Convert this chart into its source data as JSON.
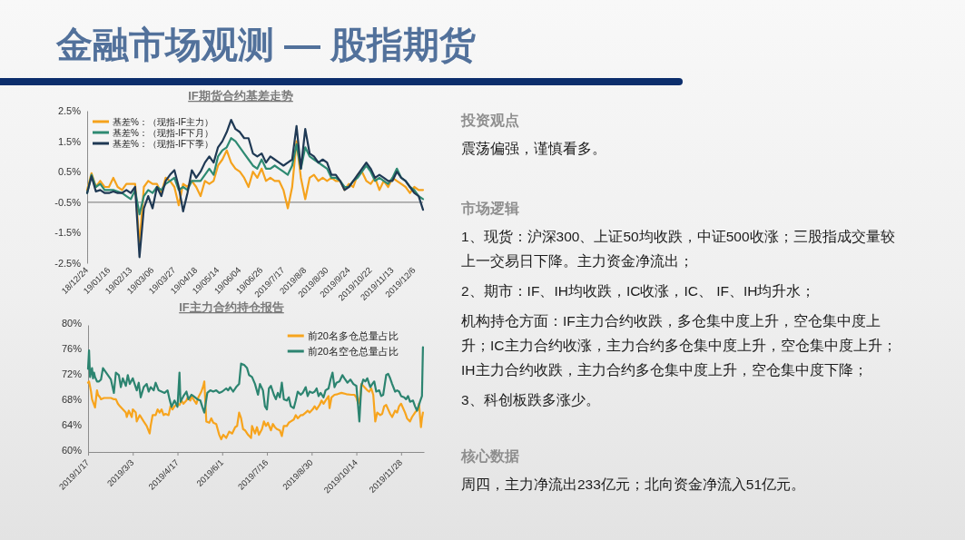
{
  "chart_data": [
    {
      "type": "other",
      "title": "金融市场观测 — 股指期货"
    },
    {
      "type": "line",
      "title": "IF期货合约基差走势",
      "categories": [
        "18/12/24",
        null,
        null,
        null,
        null,
        "19/01/16",
        null,
        null,
        null,
        null,
        "19/02/13",
        null,
        null,
        null,
        null,
        "19/03/06",
        null,
        null,
        null,
        null,
        "19/03/27",
        null,
        null,
        null,
        null,
        "19/04/18",
        null,
        null,
        null,
        null,
        "19/05/14",
        null,
        null,
        null,
        null,
        "19/06/04",
        null,
        null,
        null,
        null,
        "19/06/26",
        null,
        null,
        null,
        null,
        "2019/7/17",
        null,
        null,
        null,
        null,
        "2019/8/8",
        null,
        null,
        null,
        null,
        "2019/8/30",
        null,
        null,
        null,
        null,
        "2019/9/24",
        null,
        null,
        null,
        null,
        "2019/10/22",
        null,
        null,
        null,
        null,
        "2019/11/13",
        null,
        null,
        null,
        null,
        "2019/12/6",
        null,
        null
      ],
      "series": [
        {
          "name": "基差%：（现指-IF主力）",
          "color": "#f5a21c",
          "values": [
            -0.1,
            0.45,
            0.0,
            0.2,
            0.0,
            0.0,
            0.3,
            0.0,
            -0.1,
            0.1,
            0.1,
            0.1,
            -1.9,
            0.0,
            0.2,
            0.1,
            0.1,
            -0.2,
            0.3,
            0.2,
            0.0,
            -0.6,
            0.1,
            0.0,
            0.2,
            0.0,
            -0.3,
            0.2,
            0.1,
            0.2,
            0.7,
            0.9,
            1.2,
            0.8,
            0.6,
            0.5,
            0.3,
            0.0,
            0.5,
            0.3,
            0.6,
            0.2,
            0.3,
            0.2,
            0.2,
            -0.1,
            -0.7,
            0.0,
            1.5,
            0.3,
            -0.4,
            0.3,
            0.4,
            0.2,
            0.3,
            0.2,
            0.3,
            0.2,
            0.2,
            -0.1,
            0.1,
            0.0,
            0.4,
            0.5,
            0.2,
            0.1,
            0.3,
            -0.1,
            0.2,
            0.0,
            0.3,
            0.2,
            0.1,
            0.0,
            -0.2,
            0.0,
            -0.1,
            -0.1
          ]
        },
        {
          "name": "基差%：（现指-IF下月）",
          "color": "#2e8a72",
          "values": [
            -0.2,
            0.4,
            0.0,
            0.1,
            -0.1,
            -0.1,
            -0.1,
            -0.15,
            -0.2,
            -0.3,
            -0.4,
            -0.1,
            -0.9,
            -0.3,
            -0.1,
            -0.2,
            0.0,
            -0.1,
            0.1,
            0.2,
            0.3,
            -0.1,
            0.0,
            -0.1,
            0.2,
            0.2,
            0.2,
            0.4,
            0.6,
            0.4,
            1.0,
            1.2,
            1.3,
            1.6,
            1.5,
            1.3,
            1.1,
            0.9,
            0.7,
            0.6,
            0.9,
            0.6,
            0.6,
            0.7,
            0.6,
            0.5,
            0.4,
            0.7,
            1.4,
            0.6,
            1.3,
            1.0,
            0.9,
            0.8,
            0.7,
            0.6,
            0.3,
            0.3,
            0.2,
            0.0,
            0.0,
            0.2,
            0.3,
            0.5,
            0.7,
            0.5,
            0.2,
            0.3,
            0.2,
            0.1,
            0.3,
            0.6,
            0.3,
            0.2,
            0.0,
            -0.1,
            -0.3,
            -0.4
          ]
        },
        {
          "name": "基差%：（现指-IF下季）",
          "color": "#1f3954",
          "values": [
            -0.2,
            0.35,
            -0.15,
            -0.1,
            -0.2,
            -0.2,
            -0.15,
            -0.2,
            -0.2,
            -0.1,
            -0.2,
            0.0,
            -2.3,
            -0.7,
            -0.3,
            -0.7,
            0.0,
            -0.3,
            0.2,
            0.4,
            0.55,
            0.0,
            -0.8,
            -0.2,
            0.55,
            0.3,
            0.5,
            0.8,
            1.0,
            0.8,
            1.3,
            1.5,
            1.8,
            2.2,
            1.9,
            1.8,
            1.6,
            1.6,
            1.1,
            1.0,
            1.1,
            0.8,
            1.0,
            0.9,
            0.8,
            0.7,
            0.8,
            0.9,
            2.0,
            0.6,
            1.9,
            1.1,
            1.0,
            0.8,
            0.9,
            0.8,
            0.4,
            0.4,
            0.2,
            -0.1,
            0.0,
            0.2,
            0.4,
            0.6,
            0.8,
            0.6,
            0.3,
            0.4,
            0.3,
            0.2,
            0.2,
            0.5,
            0.3,
            0.2,
            0.0,
            -0.2,
            -0.3,
            -0.75
          ]
        }
      ],
      "ylim": [
        -2.5,
        2.5
      ],
      "yticks": [
        {
          "value": -2.5,
          "label": "-2.5%"
        },
        {
          "value": -1.5,
          "label": "-1.5%"
        },
        {
          "value": -0.5,
          "label": "-0.5%"
        },
        {
          "value": 0.5,
          "label": "0.5%"
        },
        {
          "value": 1.5,
          "label": "1.5%"
        },
        {
          "value": 2.5,
          "label": "2.5%"
        }
      ],
      "ref_lines": [
        {
          "axis": "y",
          "value": -0.5
        }
      ],
      "legend": "top left"
    },
    {
      "type": "line",
      "title": "IF主力合约持仓报告",
      "series": [
        {
          "name": "前20名多仓总量占比",
          "color": "#f7a41d",
          "x": [
            "2019-01-17",
            "2019-01-18",
            "2019-01-20",
            "2019-01-21",
            "2019-01-24",
            "2019-01-26",
            "2019-01-27",
            "2019-01-29",
            "2019-01-30",
            "2019-02-02",
            "2019-02-06",
            "2019-02-09",
            "2019-02-12",
            "2019-02-14",
            "2019-02-16",
            "2019-02-18",
            "2019-02-21",
            "2019-02-24",
            "2019-02-25",
            "2019-02-27",
            "2019-03-02",
            "2019-03-03",
            "2019-03-06",
            "2019-03-07",
            "2019-03-10",
            "2019-03-12",
            "2019-03-14",
            "2019-03-17",
            "2019-03-20",
            "2019-03-21",
            "2019-03-23",
            "2019-03-26",
            "2019-03-28",
            "2019-03-30",
            "2019-04-01",
            "2019-04-03",
            "2019-04-05",
            "2019-04-08",
            "2019-04-10",
            "2019-04-12",
            "2019-04-14",
            "2019-04-17",
            "2019-04-19",
            "2019-04-21",
            "2019-04-23",
            "2019-04-26",
            "2019-04-27",
            "2019-04-30",
            "2019-05-01",
            "2019-05-03",
            "2019-05-06",
            "2019-05-08",
            "2019-05-11",
            "2019-05-13",
            "2019-05-14",
            "2019-05-16",
            "2019-05-19",
            "2019-05-21",
            "2019-05-23",
            "2019-05-26",
            "2019-05-29",
            "2019-05-31",
            "2019-06-02",
            "2019-06-05",
            "2019-06-08",
            "2019-06-11",
            "2019-06-14",
            "2019-06-16",
            "2019-06-18",
            "2019-06-20",
            "2019-06-22",
            "2019-06-24",
            "2019-06-27",
            "2019-06-30",
            "2019-07-01",
            "2019-07-04",
            "2019-07-06",
            "2019-07-08",
            "2019-07-11",
            "2019-07-13",
            "2019-07-15",
            "2019-07-17",
            "2019-07-20",
            "2019-07-22",
            "2019-07-24",
            "2019-07-26",
            "2019-07-29",
            "2019-07-31",
            "2019-08-02",
            "2019-08-05",
            "2019-08-07",
            "2019-08-09",
            "2019-08-12",
            "2019-08-14",
            "2019-08-16",
            "2019-08-19",
            "2019-08-21",
            "2019-08-24",
            "2019-08-26",
            "2019-08-28",
            "2019-08-31",
            "2019-09-02",
            "2019-09-04",
            "2019-09-07",
            "2019-09-09",
            "2019-09-11",
            "2019-09-13",
            "2019-09-16",
            "2019-09-17",
            "2019-09-19",
            "2019-09-22",
            "2019-09-25",
            "2019-09-29",
            "2019-10-04",
            "2019-10-09",
            "2019-10-12",
            "2019-10-14",
            "2019-10-16",
            "2019-10-18",
            "2019-10-19",
            "2019-10-22",
            "2019-10-25",
            "2019-10-27",
            "2019-10-29",
            "2019-10-31",
            "2019-11-02",
            "2019-11-04",
            "2019-11-07",
            "2019-11-09",
            "2019-11-11",
            "2019-11-13",
            "2019-11-15",
            "2019-11-17",
            "2019-11-19",
            "2019-11-22",
            "2019-11-24",
            "2019-11-26",
            "2019-11-28",
            "2019-11-30",
            "2019-12-02",
            "2019-12-04",
            "2019-12-07",
            "2019-12-09",
            "2019-12-12",
            "2019-12-15",
            "2019-12-16",
            "2019-12-18",
            "2019-12-19",
            "2019-12-20"
          ],
          "values": [
            70.9,
            71.1,
            69.5,
            68.3,
            67.0,
            69.7,
            69.0,
            68.6,
            68.3,
            68.5,
            68.5,
            68.5,
            68.3,
            68.3,
            67.6,
            67.2,
            66.7,
            66.2,
            65.5,
            66.5,
            65.5,
            66.7,
            66.2,
            64.8,
            65.8,
            65.3,
            64.8,
            64.1,
            62.9,
            64.1,
            65.8,
            65.8,
            66.7,
            66.2,
            66.7,
            65.8,
            66.0,
            65.8,
            67.2,
            66.7,
            67.2,
            67.6,
            67.4,
            68.1,
            67.6,
            68.1,
            68.5,
            68.1,
            68.8,
            68.3,
            67.6,
            68.6,
            69.5,
            70.4,
            71.1,
            64.8,
            64.6,
            65.3,
            64.6,
            64.4,
            62.7,
            62.0,
            62.7,
            62.2,
            63.2,
            62.9,
            63.9,
            64.1,
            66.2,
            65.3,
            63.6,
            63.4,
            62.7,
            62.2,
            64.1,
            62.9,
            63.9,
            62.7,
            63.6,
            64.8,
            64.1,
            64.6,
            63.4,
            64.4,
            63.9,
            63.6,
            63.4,
            62.5,
            64.1,
            64.1,
            64.6,
            64.8,
            65.1,
            65.8,
            65.3,
            65.8,
            65.8,
            66.2,
            66.5,
            66.2,
            66.7,
            67.2,
            66.7,
            67.4,
            68.1,
            67.6,
            68.1,
            68.8,
            66.9,
            68.6,
            69.0,
            69.1,
            69.3,
            69.1,
            69.0,
            69.0,
            68.6,
            67.6,
            68.8,
            70.7,
            70.2,
            69.7,
            69.5,
            70.0,
            69.0,
            64.8,
            66.2,
            65.8,
            66.0,
            67.2,
            67.4,
            66.7,
            66.0,
            65.5,
            66.5,
            66.2,
            67.2,
            67.6,
            66.9,
            66.2,
            65.3,
            64.8,
            65.5,
            66.2,
            66.7,
            67.6,
            63.9,
            65.3,
            66.2
          ]
        },
        {
          "name": "前20名空仓总量占比",
          "color": "#2c8470",
          "x": [
            "2019-01-17",
            "2019-01-18",
            "2019-01-19",
            "2019-01-21",
            "2019-01-22",
            "2019-01-23",
            "2019-01-24",
            "2019-01-26",
            "2019-01-28",
            "2019-01-30",
            "2019-02-01",
            "2019-02-06",
            "2019-02-09",
            "2019-02-12",
            "2019-02-14",
            "2019-02-17",
            "2019-02-19",
            "2019-02-21",
            "2019-02-24",
            "2019-02-26",
            "2019-02-28",
            "2019-03-03",
            "2019-03-07",
            "2019-03-09",
            "2019-03-11",
            "2019-03-14",
            "2019-03-17",
            "2019-03-19",
            "2019-03-21",
            "2019-03-24",
            "2019-03-26",
            "2019-03-29",
            "2019-04-01",
            "2019-04-04",
            "2019-04-07",
            "2019-04-09",
            "2019-04-11",
            "2019-04-14",
            "2019-04-17",
            "2019-04-19",
            "2019-04-20",
            "2019-04-23",
            "2019-04-26",
            "2019-04-28",
            "2019-05-01",
            "2019-05-03",
            "2019-05-07",
            "2019-05-10",
            "2019-05-12",
            "2019-05-14",
            "2019-05-17",
            "2019-05-20",
            "2019-05-23",
            "2019-05-26",
            "2019-05-29",
            "2019-06-01",
            "2019-06-05",
            "2019-06-07",
            "2019-06-09",
            "2019-06-12",
            "2019-06-15",
            "2019-06-18",
            "2019-06-20",
            "2019-06-23",
            "2019-06-26",
            "2019-06-28",
            "2019-07-01",
            "2019-07-04",
            "2019-07-07",
            "2019-07-09",
            "2019-07-12",
            "2019-07-14",
            "2019-07-16",
            "2019-07-18",
            "2019-07-20",
            "2019-07-23",
            "2019-07-25",
            "2019-07-27",
            "2019-07-29",
            "2019-07-31",
            "2019-08-02",
            "2019-08-05",
            "2019-08-07",
            "2019-08-09",
            "2019-08-12",
            "2019-08-14",
            "2019-08-16",
            "2019-08-19",
            "2019-08-21",
            "2019-08-24",
            "2019-08-26",
            "2019-08-28",
            "2019-08-31",
            "2019-09-02",
            "2019-09-04",
            "2019-09-06",
            "2019-09-08",
            "2019-09-11",
            "2019-09-13",
            "2019-09-16",
            "2019-09-18",
            "2019-09-20",
            "2019-09-22",
            "2019-09-24",
            "2019-09-27",
            "2019-09-30",
            "2019-10-02",
            "2019-10-05",
            "2019-10-08",
            "2019-10-11",
            "2019-10-14",
            "2019-10-16",
            "2019-10-17",
            "2019-10-19",
            "2019-10-21",
            "2019-10-23",
            "2019-10-25",
            "2019-10-28",
            "2019-10-30",
            "2019-11-01",
            "2019-11-03",
            "2019-11-06",
            "2019-11-08",
            "2019-11-10",
            "2019-11-13",
            "2019-11-15",
            "2019-11-17",
            "2019-11-19",
            "2019-11-22",
            "2019-11-24",
            "2019-11-26",
            "2019-11-28",
            "2019-12-01",
            "2019-12-03",
            "2019-12-05",
            "2019-12-07",
            "2019-12-10",
            "2019-12-12",
            "2019-12-14",
            "2019-12-16",
            "2019-12-17",
            "2019-12-19",
            "2019-12-20"
          ],
          "values": [
            73.1,
            76.0,
            71.8,
            73.2,
            71.6,
            72.5,
            71.8,
            71.1,
            71.1,
            71.4,
            73.2,
            72.1,
            71.4,
            69.3,
            72.5,
            72.1,
            70.2,
            71.6,
            70.4,
            72.1,
            70.7,
            71.6,
            69.7,
            70.9,
            68.6,
            70.2,
            70.7,
            69.5,
            70.2,
            69.7,
            70.9,
            69.7,
            69.5,
            69.3,
            69.7,
            68.3,
            67.1,
            68.1,
            67.1,
            72.5,
            67.9,
            68.8,
            69.5,
            68.3,
            69.0,
            68.8,
            68.3,
            68.1,
            67.1,
            66.2,
            69.3,
            69.7,
            69.5,
            69.7,
            69.3,
            69.5,
            70.0,
            69.7,
            70.2,
            69.5,
            70.2,
            70.7,
            73.9,
            73.7,
            73.2,
            72.1,
            71.8,
            70.7,
            69.0,
            70.7,
            69.7,
            67.2,
            66.7,
            70.0,
            70.4,
            69.0,
            68.3,
            69.3,
            68.6,
            70.9,
            68.3,
            68.1,
            68.6,
            67.2,
            66.9,
            68.1,
            69.5,
            69.0,
            69.3,
            70.2,
            68.8,
            69.5,
            69.3,
            69.5,
            70.0,
            68.8,
            69.3,
            68.6,
            69.7,
            70.0,
            71.4,
            72.5,
            70.2,
            70.9,
            71.1,
            72.1,
            71.6,
            70.9,
            71.4,
            70.7,
            70.4,
            66.7,
            64.8,
            70.4,
            71.4,
            71.1,
            71.6,
            70.2,
            70.7,
            71.1,
            69.5,
            69.7,
            68.8,
            69.0,
            72.1,
            72.3,
            71.6,
            70.7,
            69.5,
            69.7,
            69.5,
            68.8,
            68.6,
            68.3,
            68.8,
            67.9,
            68.1,
            67.2,
            66.5,
            67.4,
            67.9,
            68.8,
            76.5
          ]
        }
      ],
      "xlim": [
        "2019-01-17",
        "2019-12-21"
      ],
      "xticks": [
        {
          "value": "2019-01-17",
          "label": "2019/1/17"
        },
        {
          "value": "2019-03-03",
          "label": "2019/3/3"
        },
        {
          "value": "2019-04-17",
          "label": "2019/4/17"
        },
        {
          "value": "2019-06-01",
          "label": "2019/6/1"
        },
        {
          "value": "2019-07-16",
          "label": "2019/7/16"
        },
        {
          "value": "2019-08-30",
          "label": "2019/8/30"
        },
        {
          "value": "2019-10-14",
          "label": "2019/10/14"
        },
        {
          "value": "2019-11-28",
          "label": "2019/11/28"
        }
      ],
      "ylim": [
        60,
        80
      ],
      "yticks": [
        {
          "value": 60,
          "label": "60%"
        },
        {
          "value": 64,
          "label": "64%"
        },
        {
          "value": 68,
          "label": "68%"
        },
        {
          "value": 72,
          "label": "72%"
        },
        {
          "value": 76,
          "label": "76%"
        },
        {
          "value": 80,
          "label": "80%"
        }
      ],
      "legend": "top right"
    },
    {
      "type": "other",
      "title": "投资观点",
      "annotations": [
        "震荡偏强，谨慎看多。"
      ]
    },
    {
      "type": "other",
      "title": "市场逻辑",
      "annotations": [
        "1、现货：沪深300、上证50均收跌，中证500收涨；三股指成交量较上一交易日下降。主力资金净流出；",
        "2、期市：IF、IH均收跌，IC收涨，IC、 IF、IH均升水；",
        "机构持仓方面：IF主力合约收跌，多仓集中度上升，空仓集中度上升；IC主力合约收涨，主力合约多仓集中度上升，空仓集中度上升；IH主力合约收跌，主力合约多仓集中度上升，空仓集中度下降；",
        "3、科创板跌多涨少。"
      ]
    },
    {
      "type": "other",
      "title": "核心数据",
      "annotations": [
        "周四，主力净流出233亿元；北向资金净流入51亿元。"
      ]
    }
  ]
}
